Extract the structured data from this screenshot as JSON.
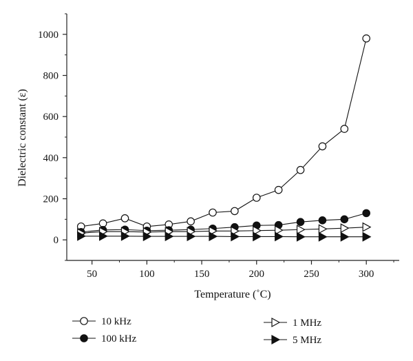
{
  "chart_data": {
    "type": "line",
    "xlabel": "Temperature (˚C)",
    "ylabel": "Dielectric constant (ε)",
    "xlim": [
      27,
      330
    ],
    "ylim": [
      -100,
      1100
    ],
    "xticks": [
      50,
      100,
      150,
      200,
      250,
      300
    ],
    "yticks": [
      0,
      200,
      400,
      600,
      800,
      1000
    ],
    "grid": false,
    "legend_position": "bottom",
    "x": [
      40,
      60,
      80,
      100,
      120,
      140,
      160,
      180,
      200,
      220,
      240,
      260,
      280,
      300
    ],
    "series": [
      {
        "name": "10 kHz",
        "marker": "circle-open",
        "values": [
          65,
          80,
          105,
          65,
          75,
          90,
          133,
          140,
          205,
          243,
          340,
          455,
          540,
          980
        ]
      },
      {
        "name": "100 kHz",
        "marker": "circle-filled",
        "values": [
          38,
          48,
          50,
          45,
          47,
          50,
          55,
          62,
          70,
          72,
          87,
          95,
          100,
          130
        ]
      },
      {
        "name": "1 MHz",
        "marker": "triangle-right-open",
        "values": [
          33,
          40,
          40,
          38,
          40,
          40,
          43,
          43,
          45,
          47,
          50,
          53,
          57,
          62
        ]
      },
      {
        "name": "5 MHz",
        "marker": "triangle-right-filled",
        "values": [
          18,
          18,
          18,
          17,
          17,
          17,
          17,
          16,
          16,
          16,
          15,
          15,
          15,
          15
        ]
      }
    ]
  }
}
